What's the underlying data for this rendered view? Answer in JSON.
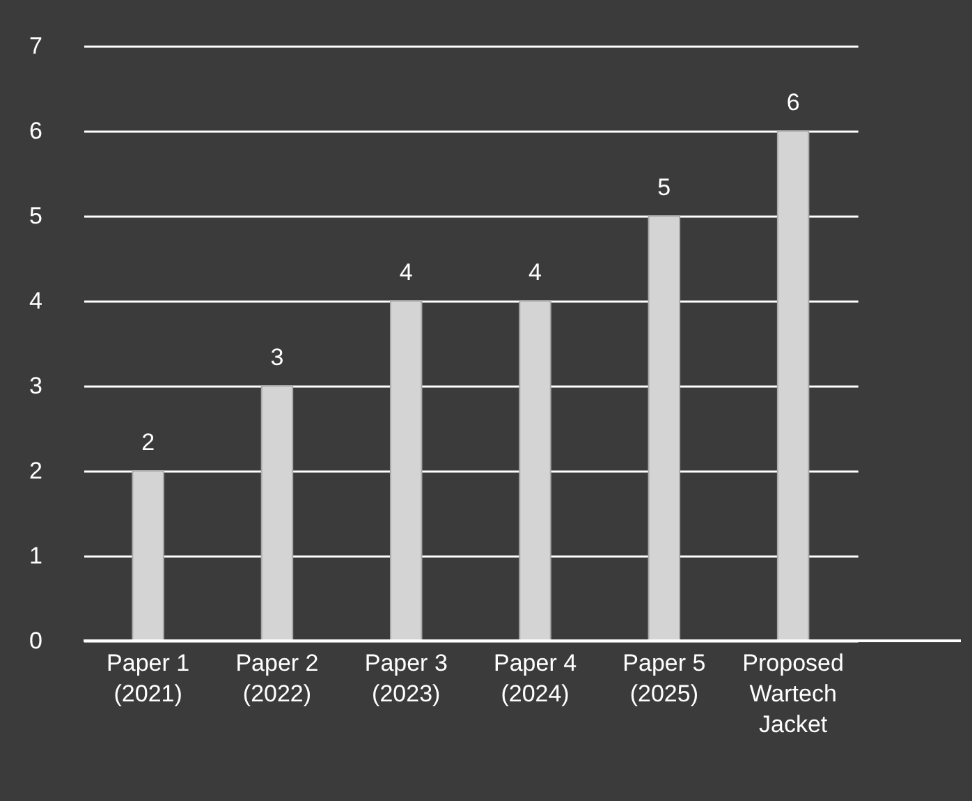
{
  "chart_data": {
    "type": "bar",
    "categories": [
      "Paper 1 (2021)",
      "Paper 2 (2022)",
      "Paper 3 (2023)",
      "Paper 4 (2024)",
      "Paper 5 (2025)",
      "Proposed Wartech Jacket"
    ],
    "values": [
      2,
      3,
      4,
      4,
      5,
      6
    ],
    "color": "#d4d4d4",
    "ylim": [
      0,
      7
    ],
    "yticks": [
      0,
      1,
      2,
      3,
      4,
      5,
      6,
      7
    ],
    "grid": "y",
    "data_labels": true
  }
}
